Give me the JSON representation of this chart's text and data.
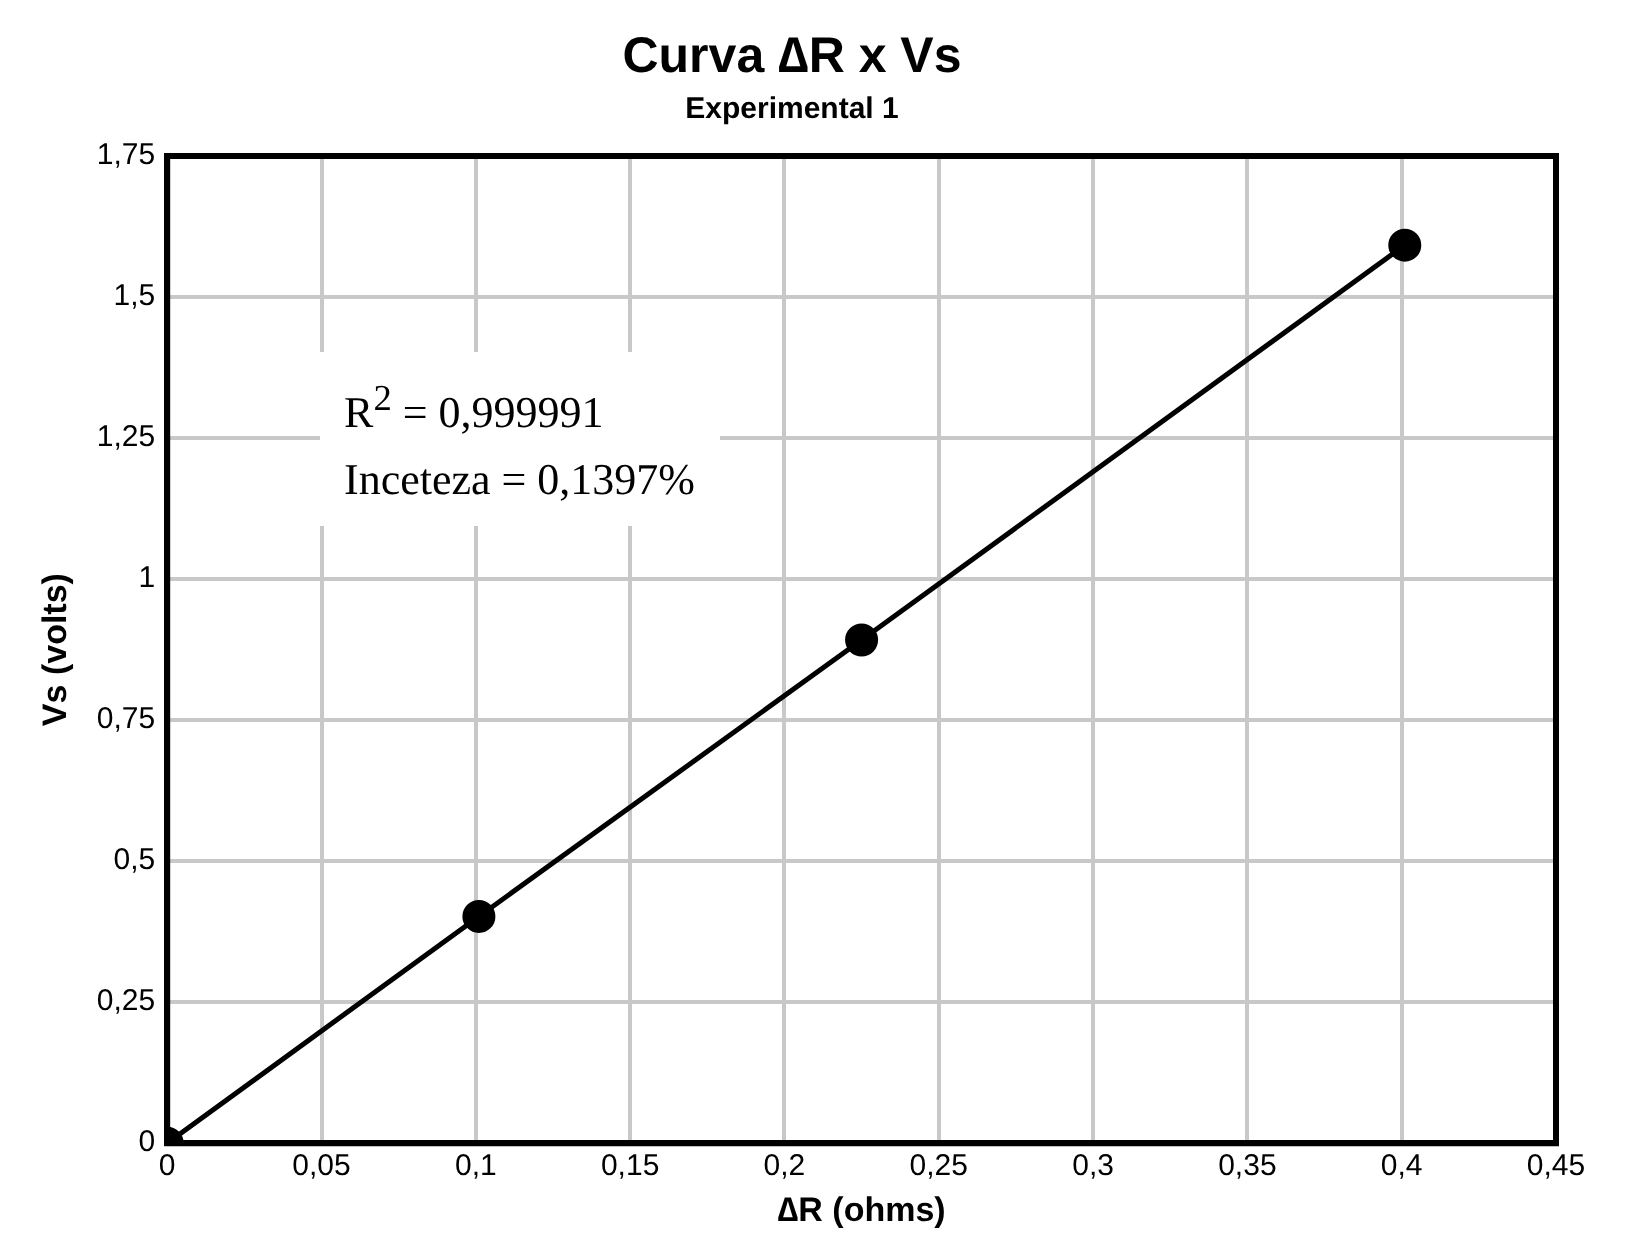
{
  "chart_data": {
    "type": "line",
    "title": "Curva ∆R x Vs",
    "subtitle": "Experimental 1",
    "xlabel": "∆R (ohms)",
    "ylabel": "Vs (volts)",
    "x": [
      0,
      0.101,
      0.225,
      0.401
    ],
    "series": [
      {
        "color": "#000000",
        "values": [
          0,
          0.402,
          0.892,
          1.592
        ]
      }
    ],
    "xlim": [
      0,
      0.45
    ],
    "xticks": [
      0,
      {
        "value": 0.05,
        "label": "0,05"
      },
      {
        "value": 0.1,
        "label": "0,1"
      },
      {
        "value": 0.15,
        "label": "0,15"
      },
      {
        "value": 0.2,
        "label": "0,2"
      },
      {
        "value": 0.25,
        "label": "0,25"
      },
      {
        "value": 0.3,
        "label": "0,3"
      },
      {
        "value": 0.35,
        "label": "0,35"
      },
      {
        "value": 0.4,
        "label": "0,4"
      },
      {
        "value": 0.45,
        "label": "0,45"
      }
    ],
    "ylim": [
      0,
      1.75
    ],
    "yticks": [
      0,
      {
        "value": 0.25,
        "label": "0,25"
      },
      {
        "value": 0.5,
        "label": "0,5"
      },
      {
        "value": 0.75,
        "label": "0,75"
      },
      1,
      {
        "value": 1.25,
        "label": "1,25"
      },
      {
        "value": 1.5,
        "label": "1,5"
      },
      {
        "value": 1.75,
        "label": "1,75"
      }
    ],
    "annotations": [
      "R$^{2}$ = 0,999991",
      "Inceteza = 0,1397%"
    ],
    "grid": true,
    "legend": false,
    "marker": "circle",
    "line_style": "solid"
  }
}
